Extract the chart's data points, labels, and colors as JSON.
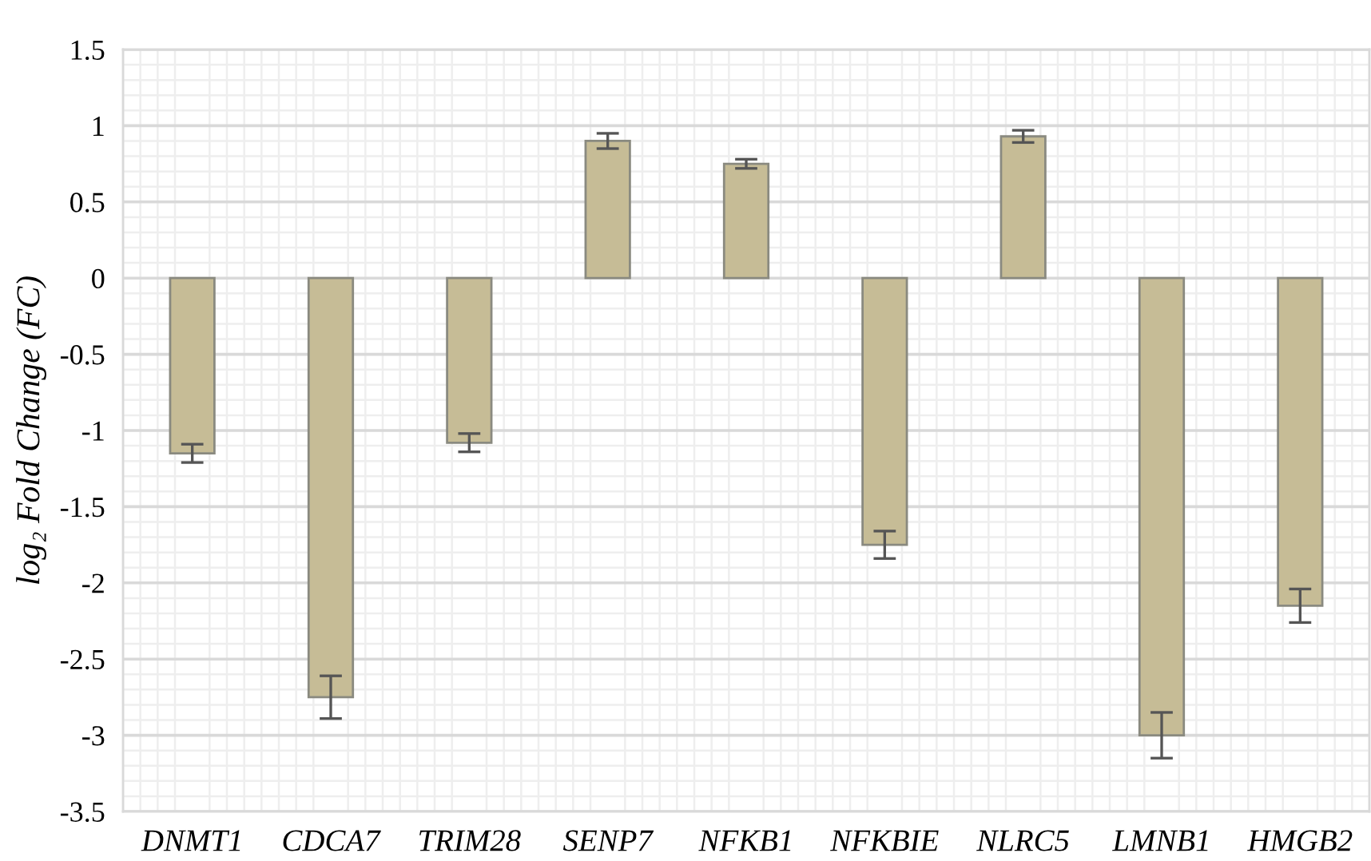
{
  "chart_data": {
    "type": "bar",
    "ylabel": "log₂ Fold Change (FC)",
    "categories": [
      "DNMT1",
      "CDCA7",
      "TRIM28",
      "SENP7",
      "NFKB1",
      "NFKBIE",
      "NLRC5",
      "LMNB1",
      "HMGB2"
    ],
    "values": [
      -1.15,
      -2.75,
      -1.08,
      0.9,
      0.75,
      -1.75,
      0.93,
      -3.0,
      -2.15
    ],
    "errors": [
      0.06,
      0.14,
      0.06,
      0.05,
      0.03,
      0.09,
      0.04,
      0.15,
      0.11
    ],
    "color": "#c6bc96",
    "ylim": [
      -3.5,
      1.5
    ],
    "yticks": [
      1.5,
      1,
      0.5,
      0,
      -0.5,
      -1,
      -1.5,
      -2,
      -2.5,
      -3,
      -3.5
    ],
    "grid": true
  }
}
